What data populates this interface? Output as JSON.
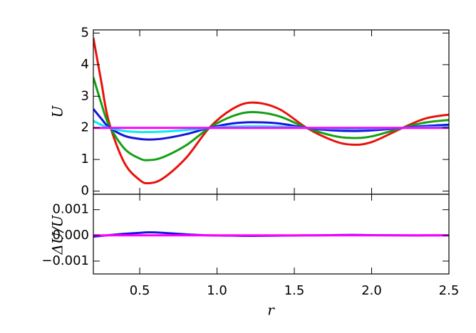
{
  "chart_data": [
    {
      "type": "line",
      "ylabel": "U",
      "x": [
        0.2,
        0.25,
        0.3,
        0.4,
        0.5,
        0.56,
        0.65,
        0.8,
        0.95,
        1.1,
        1.23,
        1.4,
        1.58,
        1.75,
        1.87,
        2.0,
        2.2,
        2.35,
        2.5
      ],
      "xlim": [
        0.2,
        2.5
      ],
      "xticks": [
        0.5,
        1,
        1.5,
        2,
        2.5
      ],
      "ylim": [
        -0.1,
        5.1
      ],
      "yticks": [
        0,
        1,
        2,
        3,
        4,
        5
      ],
      "series": [
        {
          "color": "#e8120c",
          "values": [
            4.85,
            3.5,
            2.2,
            0.9,
            0.35,
            0.25,
            0.4,
            1.05,
            2.0,
            2.6,
            2.8,
            2.6,
            2.0,
            1.6,
            1.47,
            1.55,
            2.0,
            2.3,
            2.42
          ]
        },
        {
          "color": "#13a013",
          "values": [
            3.6,
            2.8,
            2.1,
            1.35,
            1.03,
            0.98,
            1.07,
            1.45,
            2.0,
            2.37,
            2.5,
            2.37,
            2.0,
            1.75,
            1.68,
            1.73,
            2.0,
            2.17,
            2.25
          ]
        },
        {
          "color": "#1414e0",
          "values": [
            2.6,
            2.3,
            2.03,
            1.75,
            1.65,
            1.63,
            1.66,
            1.8,
            2.0,
            2.14,
            2.18,
            2.14,
            2.0,
            1.92,
            1.9,
            1.92,
            2.0,
            2.06,
            2.1
          ]
        },
        {
          "color": "#00f0f0",
          "values": [
            2.22,
            2.1,
            2.0,
            1.9,
            1.87,
            1.87,
            1.88,
            1.93,
            2.0,
            2.04,
            2.05,
            2.04,
            2.0,
            1.98,
            1.97,
            1.98,
            2.0,
            2.02,
            2.03
          ]
        },
        {
          "color": "#ff00ff",
          "values": [
            2.0,
            2.0,
            2.0,
            2.0,
            2.0,
            2.0,
            2.0,
            2.0,
            2.0,
            2.0,
            2.0,
            2.0,
            2.0,
            2.0,
            2.0,
            2.0,
            2.0,
            2.0,
            2.0
          ]
        }
      ]
    },
    {
      "type": "line",
      "ylabel": "ΔU/U",
      "xlabel": "r",
      "x": [
        0.2,
        0.25,
        0.3,
        0.4,
        0.5,
        0.56,
        0.65,
        0.8,
        0.95,
        1.1,
        1.23,
        1.4,
        1.58,
        1.75,
        1.87,
        2.0,
        2.2,
        2.35,
        2.5
      ],
      "xlim": [
        0.2,
        2.5
      ],
      "xticks": [
        0.5,
        {
          "value": 1,
          "label": "1.0"
        },
        1.5,
        {
          "value": 2,
          "label": "2.0"
        },
        2.5
      ],
      "ylim": [
        -0.0015,
        0.0016
      ],
      "yticks": [
        {
          "value": -0.001,
          "label": "−0.001"
        },
        {
          "value": 0,
          "label": "0.000"
        },
        0.001
      ],
      "series": [
        {
          "color": "#1414e0",
          "values": [
            -5e-05,
            -2e-05,
            1e-05,
            6e-05,
            0.0001,
            0.00012,
            0.0001,
            4e-05,
            0.0,
            -1e-05,
            -2e-05,
            -1e-05,
            0.0,
            1e-05,
            2e-05,
            1e-05,
            0.0,
            0.0,
            0.0
          ]
        },
        {
          "color": "#ff00ff",
          "values": [
            0.0,
            0.0,
            0.0,
            0.0,
            0.0,
            0.0,
            0.0,
            0.0,
            0.0,
            0.0,
            0.0,
            0.0,
            0.0,
            0.0,
            0.0,
            0.0,
            0.0,
            0.0,
            0.0
          ]
        }
      ]
    }
  ]
}
